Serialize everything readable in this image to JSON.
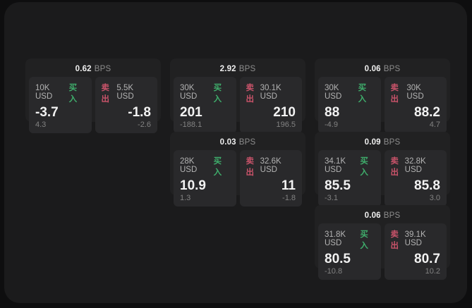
{
  "colors": {
    "page_bg": "#0e0e0f",
    "surface_bg": "#1b1b1c",
    "card_bg": "#212122",
    "panel_bg": "#29292b",
    "buy_accent": "#3fae6c",
    "sell_accent": "#c9536a"
  },
  "bps_unit": "BPS",
  "cards": [
    {
      "bps": "0.62",
      "buy": {
        "notional": "10K USD",
        "label": "买入",
        "value": "-3.7",
        "sub": "4.3"
      },
      "sell": {
        "label": "卖出",
        "notional": "5.5K USD",
        "value": "-1.8",
        "sub": "-2.6"
      }
    },
    {
      "bps": "2.92",
      "buy": {
        "notional": "30K USD",
        "label": "买入",
        "value": "201",
        "sub": "-188.1"
      },
      "sell": {
        "label": "卖出",
        "notional": "30.1K USD",
        "value": "210",
        "sub": "196.5"
      }
    },
    {
      "bps": "0.06",
      "buy": {
        "notional": "30K USD",
        "label": "买入",
        "value": "88",
        "sub": "-4.9"
      },
      "sell": {
        "label": "卖出",
        "notional": "30K USD",
        "value": "88.2",
        "sub": "4.7"
      }
    },
    {
      "bps": "0.03",
      "buy": {
        "notional": "28K USD",
        "label": "买入",
        "value": "10.9",
        "sub": "1.3"
      },
      "sell": {
        "label": "卖出",
        "notional": "32.6K USD",
        "value": "11",
        "sub": "-1.8"
      }
    },
    {
      "bps": "0.09",
      "buy": {
        "notional": "34.1K USD",
        "label": "买入",
        "value": "85.5",
        "sub": "-3.1"
      },
      "sell": {
        "label": "卖出",
        "notional": "32.8K USD",
        "value": "85.8",
        "sub": "3.0"
      }
    },
    {
      "bps": "0.06",
      "buy": {
        "notional": "31.8K USD",
        "label": "买入",
        "value": "80.5",
        "sub": "-10.8"
      },
      "sell": {
        "label": "卖出",
        "notional": "39.1K USD",
        "value": "80.7",
        "sub": "10.2"
      }
    }
  ]
}
